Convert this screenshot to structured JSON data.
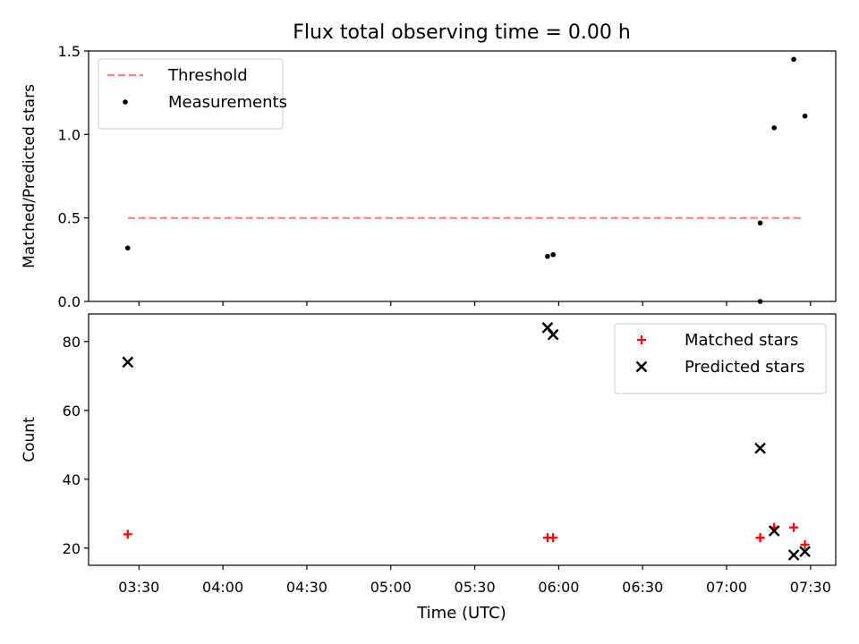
{
  "chart_data": {
    "title": "Flux total observing time = 0.00 h",
    "xlabel": "Time (UTC)",
    "x_tick_labels": [
      "03:30",
      "04:00",
      "04:30",
      "05:00",
      "05:30",
      "06:00",
      "06:30",
      "07:00",
      "07:30"
    ],
    "x_ticks": [
      "03:30",
      "04:00",
      "04:30",
      "05:00",
      "05:30",
      "06:00",
      "06:30",
      "07:00",
      "07:30"
    ],
    "xlim": [
      "03:12",
      "07:39"
    ],
    "subplots": [
      {
        "type": "scatter",
        "ylabel": "Matched/Predicted stars",
        "ylim": [
          0,
          1.5
        ],
        "y_ticks": [
          0.0,
          0.5,
          1.0,
          1.5
        ],
        "y_tick_labels": [
          "0.0",
          "0.5",
          "1.0",
          "1.5"
        ],
        "legend_position": "top-left",
        "threshold": {
          "name": "Threshold",
          "value": 0.5,
          "x_range": [
            "03:26",
            "07:27"
          ],
          "color": "#ff7f7f",
          "style": "dashed"
        },
        "series": [
          {
            "name": "Measurements",
            "marker": "dot",
            "color": "#000000",
            "points": [
              {
                "x": "03:26",
                "y": 0.32
              },
              {
                "x": "05:56",
                "y": 0.27
              },
              {
                "x": "05:58",
                "y": 0.28
              },
              {
                "x": "07:12",
                "y": 0.47
              },
              {
                "x": "07:12",
                "y": 0.0
              },
              {
                "x": "07:17",
                "y": 1.04
              },
              {
                "x": "07:24",
                "y": 1.45
              },
              {
                "x": "07:28",
                "y": 1.11
              }
            ]
          }
        ]
      },
      {
        "type": "scatter",
        "ylabel": "Count",
        "ylim": [
          15,
          88
        ],
        "y_ticks": [
          20,
          40,
          60,
          80
        ],
        "y_tick_labels": [
          "20",
          "40",
          "60",
          "80"
        ],
        "legend_position": "top-right",
        "series": [
          {
            "name": "Matched stars",
            "marker": "plus",
            "color": "#ff0000",
            "points": [
              {
                "x": "03:26",
                "y": 24
              },
              {
                "x": "05:56",
                "y": 23
              },
              {
                "x": "05:58",
                "y": 23
              },
              {
                "x": "07:12",
                "y": 23
              },
              {
                "x": "07:12",
                "y": 23
              },
              {
                "x": "07:17",
                "y": 26
              },
              {
                "x": "07:24",
                "y": 26
              },
              {
                "x": "07:28",
                "y": 21
              }
            ]
          },
          {
            "name": "Predicted stars",
            "marker": "x",
            "color": "#000000",
            "points": [
              {
                "x": "03:26",
                "y": 74
              },
              {
                "x": "05:56",
                "y": 84
              },
              {
                "x": "05:58",
                "y": 82
              },
              {
                "x": "07:12",
                "y": 49
              },
              {
                "x": "07:17",
                "y": 25
              },
              {
                "x": "07:24",
                "y": 18
              },
              {
                "x": "07:28",
                "y": 19
              }
            ]
          }
        ]
      }
    ]
  }
}
